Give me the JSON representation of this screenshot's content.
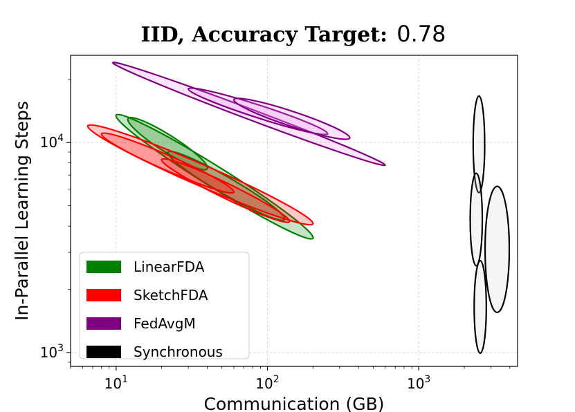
{
  "chart_data": {
    "type": "kde-contour",
    "title_prefix": "IID, Accuracy Target:",
    "title_value": "0.78",
    "xlabel": "Communication (GB)",
    "ylabel": "In-Parallel Learning Steps",
    "xscale": "log",
    "yscale": "log",
    "xlim": [
      5,
      4500
    ],
    "ylim": [
      860,
      26000
    ],
    "x_ticks": [
      {
        "value": 10,
        "base": "10",
        "exp": "1"
      },
      {
        "value": 100,
        "base": "10",
        "exp": "2"
      },
      {
        "value": 1000,
        "base": "10",
        "exp": "3"
      }
    ],
    "y_ticks": [
      {
        "value": 1000,
        "base": "10",
        "exp": "3"
      },
      {
        "value": 10000,
        "base": "10",
        "exp": "4"
      }
    ],
    "grid": true,
    "legend_position": "lower-left",
    "series": [
      {
        "name": "LinearFDA",
        "color": "#008000",
        "fill": "#008000",
        "regions": [
          {
            "x": [
              10,
              200
            ],
            "y": [
              13500,
              3500
            ],
            "width": 0.05
          },
          {
            "x": [
              12,
              40
            ],
            "y": [
              13000,
              7500
            ],
            "width": 0.04
          },
          {
            "x": [
              22,
              130
            ],
            "y": [
              9000,
              4300
            ],
            "width": 0.04
          }
        ]
      },
      {
        "name": "SketchFDA",
        "color": "#ff0000",
        "fill": "#ff0000",
        "regions": [
          {
            "x": [
              6.5,
              200
            ],
            "y": [
              12000,
              4100
            ],
            "width": 0.05
          },
          {
            "x": [
              8,
              60
            ],
            "y": [
              11000,
              5800
            ],
            "width": 0.035
          },
          {
            "x": [
              20,
              140
            ],
            "y": [
              8300,
              4200
            ],
            "width": 0.035
          }
        ]
      },
      {
        "name": "FedAvgM",
        "color": "#800080",
        "fill": "#ee82ee",
        "regions": [
          {
            "x": [
              9.5,
              600
            ],
            "y": [
              24000,
              7800
            ],
            "width": 0.025
          },
          {
            "x": [
              30,
              250
            ],
            "y": [
              18000,
              11000
            ],
            "width": 0.03
          },
          {
            "x": [
              60,
              350
            ],
            "y": [
              16000,
              10500
            ],
            "width": 0.035
          }
        ]
      },
      {
        "name": "Synchronous",
        "color": "#000000",
        "fill": "#d3d3d3",
        "regions": [
          {
            "cx": 2500,
            "cy": 9800,
            "rx": 0.038,
            "ry": 0.23
          },
          {
            "cx": 2400,
            "cy": 4300,
            "rx": 0.04,
            "ry": 0.22
          },
          {
            "cx": 2550,
            "cy": 1650,
            "rx": 0.04,
            "ry": 0.22
          },
          {
            "cx": 3300,
            "cy": 3100,
            "rx": 0.08,
            "ry": 0.3
          }
        ]
      }
    ]
  }
}
